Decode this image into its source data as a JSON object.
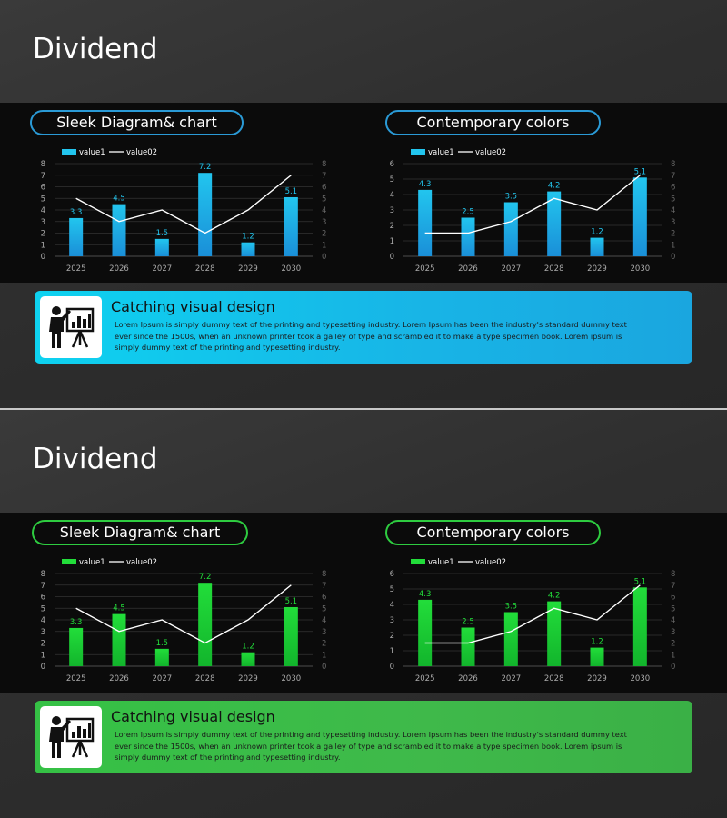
{
  "slides": [
    {
      "title": "Dividend",
      "accent": "#22c5ee",
      "pill_border": "#2a9ad6",
      "panel_left_title": "Sleek Diagram& chart",
      "panel_right_title": "Contemporary colors",
      "info_heading": "Catching visual design",
      "info_text": "Lorem Ipsum is simply dummy text of the printing and typesetting industry.  Lorem Ipsum has been the industry's standard dummy text ever since the 1500s, when an unknown printer took a galley of type and scrambled it to make a type specimen book. Lorem ipsum is simply dummy text of the printing and typesetting industry.",
      "info_icon": "presenter-chart-icon"
    },
    {
      "title": "Dividend",
      "accent": "#22dd3a",
      "pill_border": "#2ecc40",
      "panel_left_title": "Sleek Diagram& chart",
      "panel_right_title": "Contemporary colors",
      "info_heading": "Catching visual design",
      "info_text": "Lorem Ipsum is simply dummy text of the printing and typesetting industry.  Lorem Ipsum has been the industry's standard dummy text ever since the 1500s, when an unknown printer took a galley of type and scrambled it to make a type specimen book. Lorem ipsum is simply dummy text of the printing and typesetting industry.",
      "info_icon": "presenter-chart-icon"
    }
  ],
  "chart_data": [
    {
      "type": "bar",
      "categories": [
        "2025",
        "2026",
        "2027",
        "2028",
        "2029",
        "2030"
      ],
      "series": [
        {
          "name": "value1",
          "type": "bar",
          "values": [
            3.3,
            4.5,
            1.5,
            7.2,
            1.2,
            5.1
          ],
          "axis": "left"
        },
        {
          "name": "value02",
          "type": "line",
          "values": [
            5,
            3,
            4,
            2,
            4,
            7
          ],
          "axis": "right"
        }
      ],
      "ylim": [
        0,
        8
      ],
      "y2lim": [
        0,
        8
      ],
      "grid": true,
      "legend": "top-left"
    },
    {
      "type": "bar",
      "categories": [
        "2025",
        "2026",
        "2027",
        "2028",
        "2029",
        "2030"
      ],
      "series": [
        {
          "name": "value1",
          "type": "bar",
          "values": [
            4.3,
            2.5,
            3.5,
            4.2,
            1.2,
            5.1
          ],
          "axis": "left"
        },
        {
          "name": "value02",
          "type": "line",
          "values": [
            2,
            2,
            3,
            5,
            4,
            7
          ],
          "axis": "right"
        }
      ],
      "ylim": [
        0,
        6
      ],
      "y2lim": [
        0,
        8
      ],
      "grid": true,
      "legend": "top-left"
    }
  ]
}
